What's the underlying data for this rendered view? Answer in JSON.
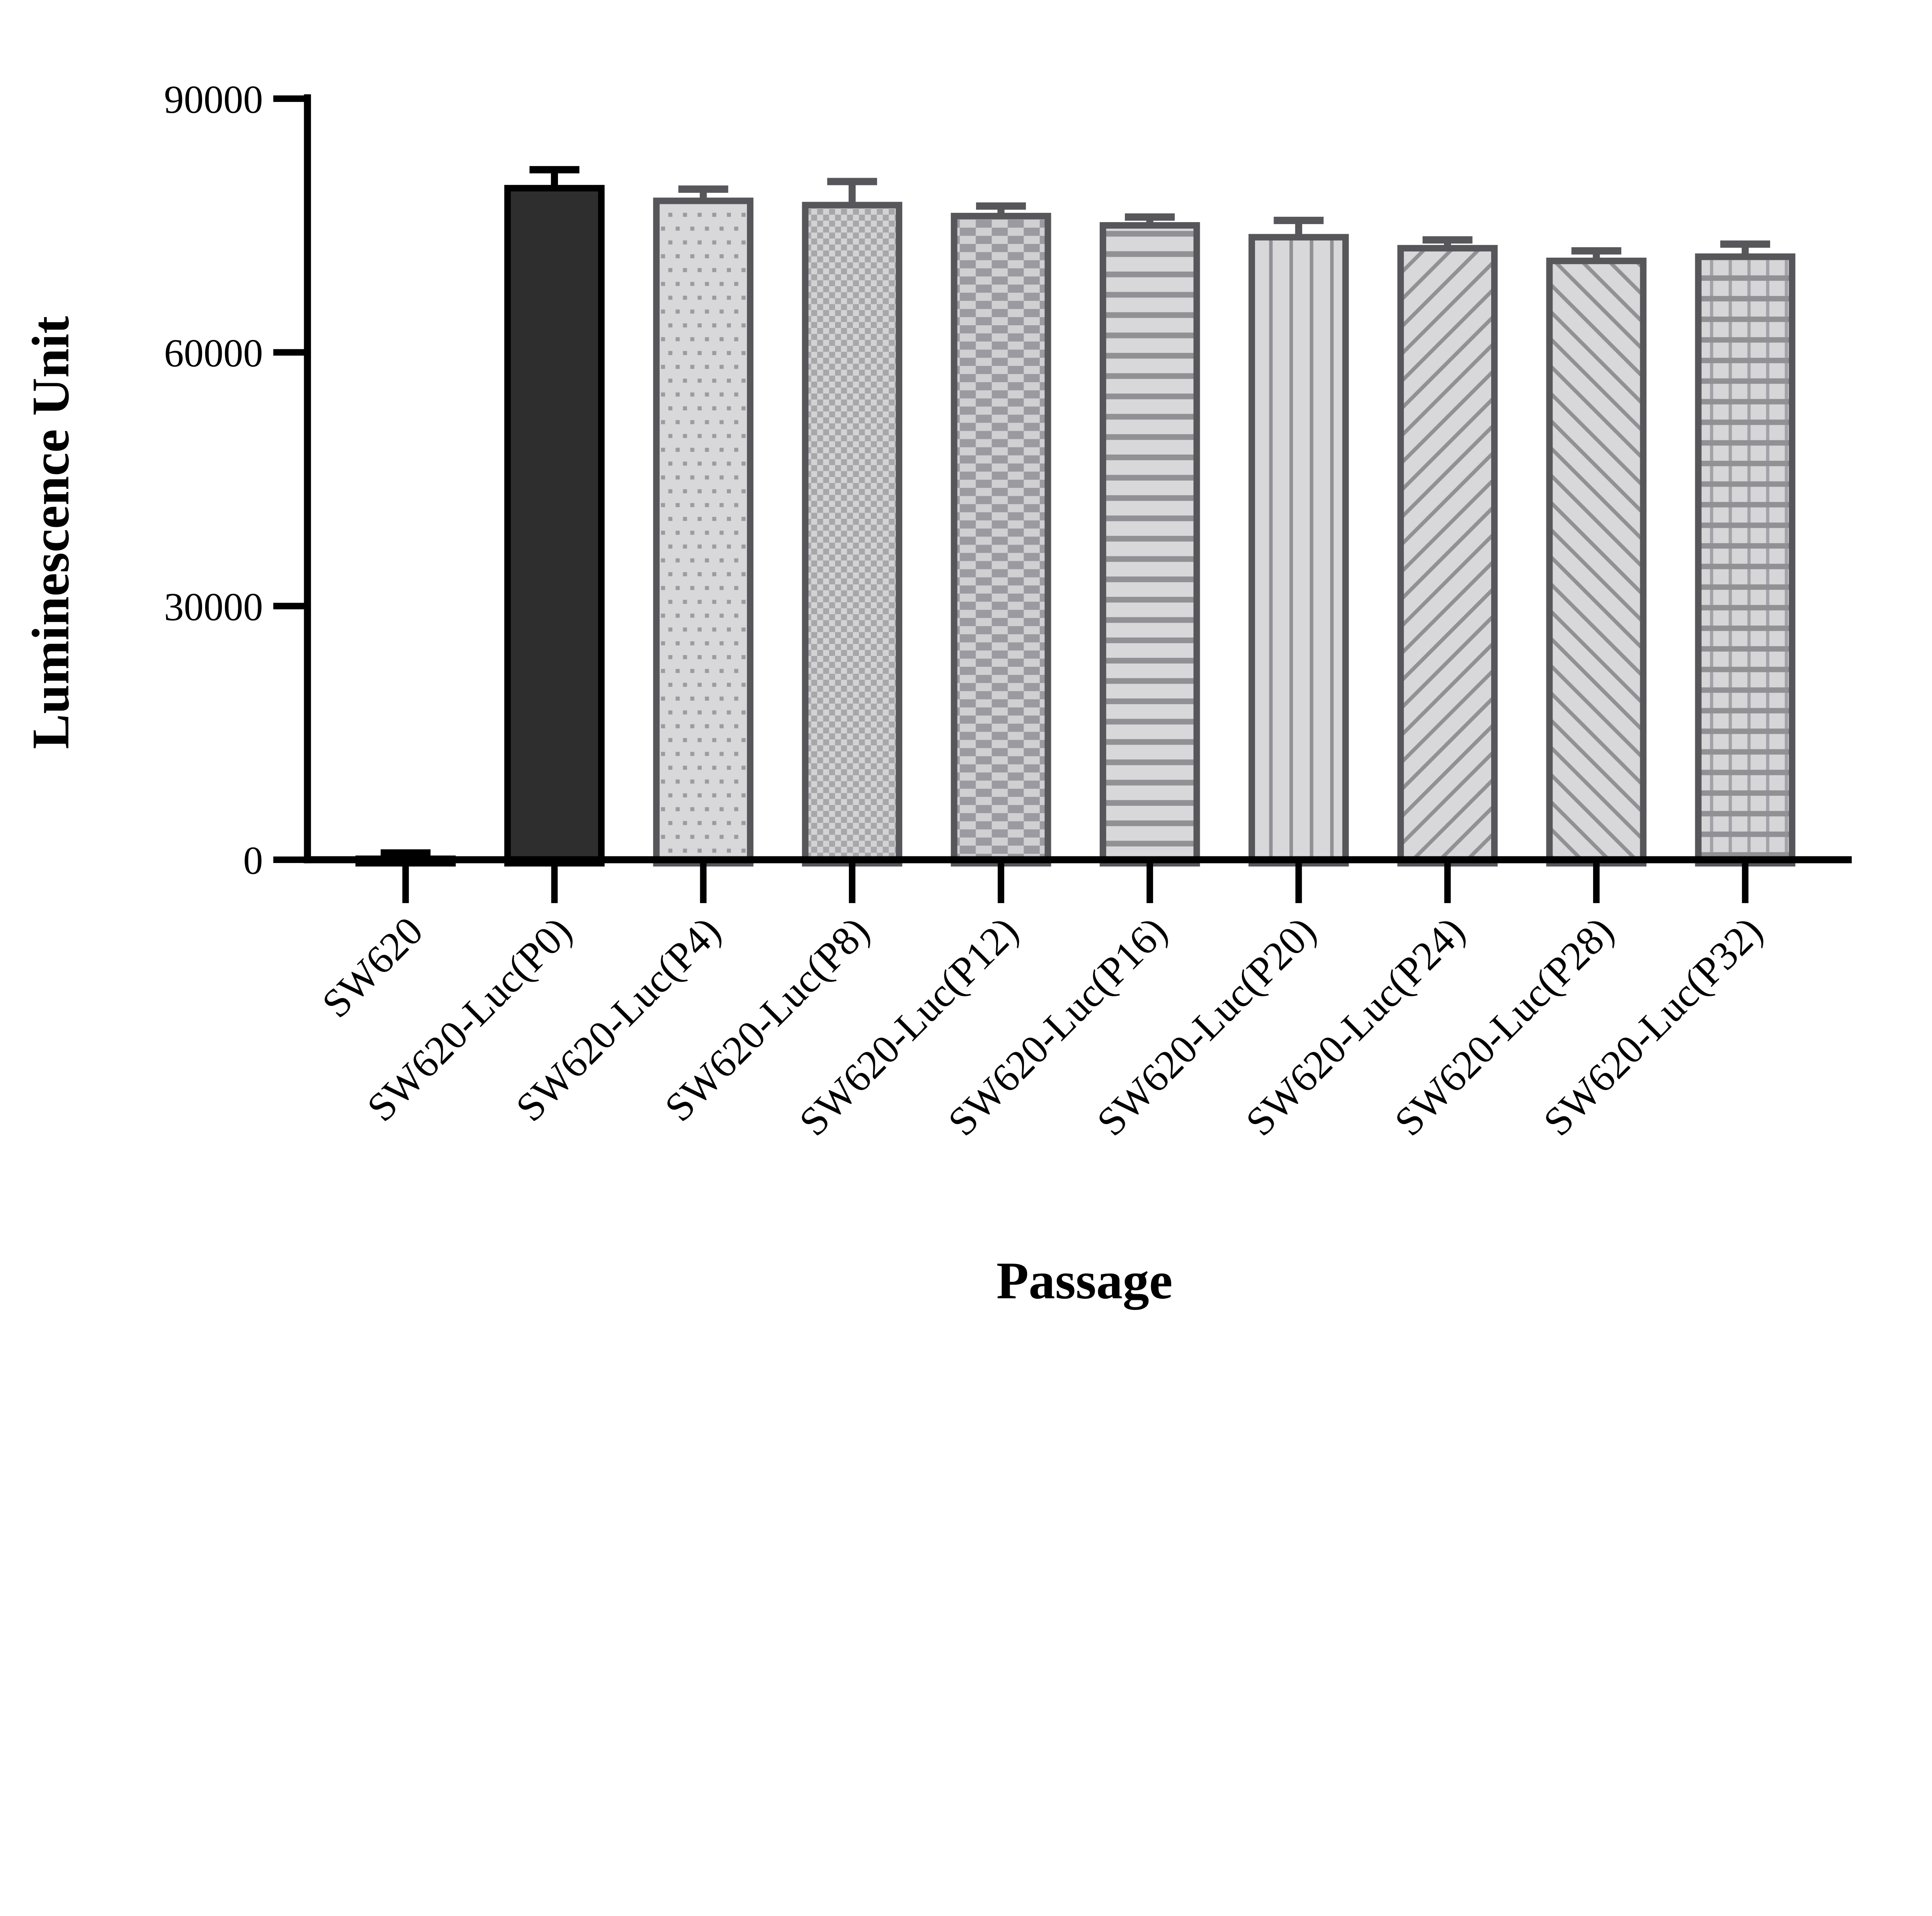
{
  "chart_data": {
    "type": "bar",
    "title": "",
    "xlabel": "Passage",
    "ylabel": "Luminescence Unit",
    "categories": [
      "SW620",
      "SW620-Luc(P0)",
      "SW620-Luc(P4)",
      "SW620-Luc(P8)",
      "SW620-Luc(P12)",
      "SW620-Luc(P16)",
      "SW620-Luc(P20)",
      "SW620-Luc(P24)",
      "SW620-Luc(P28)",
      "SW620-Luc(P32)"
    ],
    "values": [
      500,
      79800,
      78300,
      77800,
      76500,
      75400,
      74000,
      72700,
      71200,
      71700
    ],
    "errors": [
      300,
      1800,
      1000,
      2400,
      800,
      600,
      1600,
      600,
      800,
      1100
    ],
    "patterns": [
      "solid-black",
      "solid-dark",
      "dots",
      "checker-fine",
      "checker-coarse",
      "hlines",
      "vlines",
      "diag-up",
      "diag-down",
      "grid"
    ],
    "yticks": [
      0,
      30000,
      60000,
      90000
    ],
    "ylim": [
      0,
      90000
    ],
    "grid": false,
    "legend": "none",
    "error_bar_style": "sd-caps-up",
    "bar_orientation": "vertical",
    "x_label_rotation_deg": -45
  },
  "colors": {
    "background": "#ffffff",
    "black": "#000000",
    "dark_bar_fill": "#2e2e2e",
    "pattern_bg": "#d8d8da",
    "pattern_line": "#909095",
    "pattern_square": "#a7a7ab",
    "pattern_square_coarse": "#9a9aa0",
    "bar_border": "#57575b",
    "axis": "#000000"
  }
}
